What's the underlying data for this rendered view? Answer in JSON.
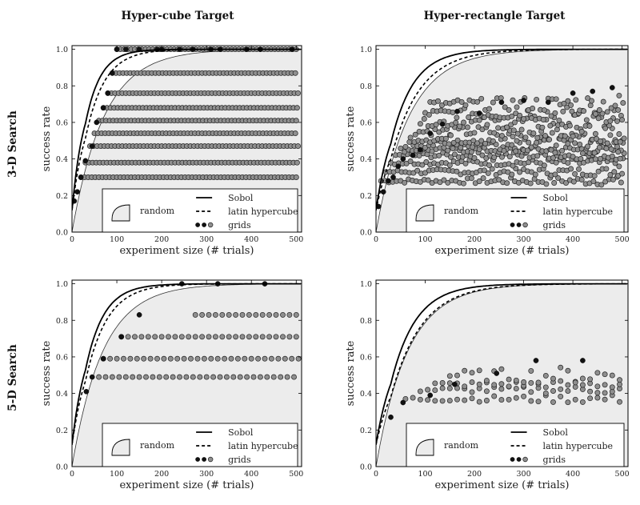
{
  "figure": {
    "col_titles": [
      "Hyper-cube Target",
      "Hyper-rectangle Target"
    ],
    "row_titles": [
      "3-D Search",
      "5-D Search"
    ],
    "legend": {
      "sobol": "Sobol",
      "latin": "latin hypercube",
      "grids": "grids",
      "random": "random"
    }
  },
  "chart_data": [
    {
      "type": "scatter",
      "id": "3d-cube",
      "xlabel": "experiment size (# trials)",
      "ylabel": "success rate",
      "xlim": [
        0,
        512
      ],
      "ylim": [
        0,
        1.02
      ],
      "xticks": [
        0,
        100,
        200,
        300,
        400,
        500
      ],
      "yticks": [
        0.0,
        0.2,
        0.4,
        0.6,
        0.8,
        1.0
      ],
      "sobol_k": 0.03,
      "latin_k": 0.024,
      "random_k": 0.014,
      "grid_levels": [
        0.3,
        0.38,
        0.47,
        0.54,
        0.61,
        0.68,
        0.76,
        0.87,
        1.0
      ],
      "grid_starts": [
        20,
        30,
        40,
        50,
        60,
        70,
        80,
        90,
        100
      ],
      "grid_spacing": 8,
      "grid_scatter": false,
      "black_points": [
        [
          5,
          0.17
        ],
        [
          12,
          0.22
        ],
        [
          20,
          0.3
        ],
        [
          30,
          0.39
        ],
        [
          45,
          0.47
        ],
        [
          55,
          0.6
        ],
        [
          70,
          0.68
        ],
        [
          80,
          0.76
        ],
        [
          90,
          0.87
        ],
        [
          100,
          1.0
        ],
        [
          120,
          1.0
        ],
        [
          150,
          1.0
        ],
        [
          190,
          1.0
        ],
        [
          200,
          1.0
        ],
        [
          240,
          1.0
        ],
        [
          270,
          1.0
        ],
        [
          310,
          1.0
        ],
        [
          330,
          1.0
        ],
        [
          390,
          1.0
        ],
        [
          420,
          1.0
        ],
        [
          490,
          1.0
        ]
      ]
    },
    {
      "type": "scatter",
      "id": "3d-rect",
      "xlabel": "experiment size (# trials)",
      "ylabel": "success rate",
      "xlim": [
        0,
        512
      ],
      "ylim": [
        0,
        1.02
      ],
      "xticks": [
        0,
        100,
        200,
        300,
        400,
        500
      ],
      "yticks": [
        0.0,
        0.2,
        0.4,
        0.6,
        0.8,
        1.0
      ],
      "sobol_k": 0.022,
      "latin_k": 0.017,
      "random_k": 0.015,
      "grid_levels": [
        0.28,
        0.33,
        0.38,
        0.42,
        0.45,
        0.48,
        0.51,
        0.55,
        0.6,
        0.65,
        0.7
      ],
      "grid_starts": [
        10,
        20,
        30,
        40,
        50,
        60,
        70,
        80,
        90,
        100,
        110
      ],
      "grid_spacing": 8,
      "grid_scatter": true,
      "black_points": [
        [
          5,
          0.14
        ],
        [
          15,
          0.22
        ],
        [
          25,
          0.28
        ],
        [
          35,
          0.3
        ],
        [
          45,
          0.36
        ],
        [
          55,
          0.4
        ],
        [
          75,
          0.42
        ],
        [
          90,
          0.45
        ],
        [
          110,
          0.54
        ],
        [
          135,
          0.59
        ],
        [
          165,
          0.66
        ],
        [
          210,
          0.65
        ],
        [
          255,
          0.71
        ],
        [
          300,
          0.72
        ],
        [
          350,
          0.71
        ],
        [
          400,
          0.76
        ],
        [
          440,
          0.77
        ],
        [
          480,
          0.79
        ]
      ]
    },
    {
      "type": "scatter",
      "id": "5d-cube",
      "xlabel": "experiment size (# trials)",
      "ylabel": "success rate",
      "xlim": [
        0,
        512
      ],
      "ylim": [
        0,
        1.02
      ],
      "xticks": [
        0,
        100,
        200,
        300,
        400,
        500
      ],
      "yticks": [
        0.0,
        0.2,
        0.4,
        0.6,
        0.8,
        1.0
      ],
      "sobol_k": 0.025,
      "latin_k": 0.021,
      "random_k": 0.0145,
      "grid_levels": [
        0.49,
        0.59,
        0.71,
        0.83
      ],
      "grid_starts": [
        60,
        70,
        110,
        275
      ],
      "grid_spacing": 15,
      "grid_scatter": false,
      "black_points": [
        [
          32,
          0.41
        ],
        [
          45,
          0.49
        ],
        [
          70,
          0.59
        ],
        [
          110,
          0.71
        ],
        [
          150,
          0.83
        ],
        [
          245,
          1.0
        ],
        [
          325,
          1.0
        ],
        [
          430,
          1.0
        ]
      ]
    },
    {
      "type": "scatter",
      "id": "5d-rect",
      "xlabel": "experiment size (# trials)",
      "ylabel": "success rate",
      "xlim": [
        0,
        512
      ],
      "ylim": [
        0,
        1.02
      ],
      "xticks": [
        0,
        100,
        200,
        300,
        400,
        500
      ],
      "yticks": [
        0.0,
        0.2,
        0.4,
        0.6,
        0.8,
        1.0
      ],
      "sobol_k": 0.02,
      "latin_k": 0.016,
      "random_k": 0.0155,
      "grid_levels": [
        0.37,
        0.42,
        0.45,
        0.5
      ],
      "grid_starts": [
        60,
        90,
        120,
        150
      ],
      "grid_spacing": 15,
      "grid_scatter": true,
      "black_points": [
        [
          30,
          0.27
        ],
        [
          55,
          0.35
        ],
        [
          110,
          0.39
        ],
        [
          160,
          0.45
        ],
        [
          245,
          0.51
        ],
        [
          325,
          0.58
        ],
        [
          420,
          0.58
        ]
      ]
    }
  ]
}
